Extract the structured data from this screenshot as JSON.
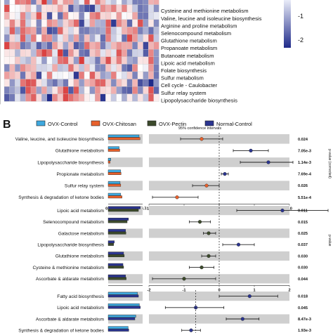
{
  "panel_label": "B",
  "heatmap": {
    "rows": [
      "Cysteine and methionine metabolism",
      "Valine, leucine and isoleucine biosynthesis",
      "Arginine and proline metabolism",
      "Selenocompound metabolism",
      "Glutathione metabolism",
      "Propanoate metabolism",
      "Butanoate metabolism",
      "Lipoic acid metabolism",
      "Folate biosynthesis",
      "Sulfur metabolism",
      "Cell cycle - Caulobacter",
      "Sulfur relay system",
      "Lipopolysaccharide biosynthesis"
    ],
    "scale_ticks": [
      "-1",
      "-2"
    ],
    "colors": {
      "low": "#1f2a8a",
      "mid": "#ffffff",
      "high": "#d93a3a"
    }
  },
  "legend": [
    {
      "name": "OVX-Control",
      "color": "#3fa9df"
    },
    {
      "name": "OVX-Chitosan",
      "color": "#e8612c"
    },
    {
      "name": "OVX-Pectin",
      "color": "#3c4a2c"
    },
    {
      "name": "Normal-Control",
      "color": "#2b3590"
    }
  ],
  "ci_label": "95% confidence intervals",
  "pvalue_axis_label": "p-value (corrected)",
  "pvalue_axis_label2": "p-value",
  "chart_data": [
    {
      "type": "bar",
      "x_ticks": [
        "0.0",
        "10.7"
      ],
      "diff_ticks": [
        "-1.0",
        "-0.5",
        "0.0",
        "0.5",
        "1.0"
      ],
      "diff_lim": [
        -1.0,
        1.0
      ],
      "bar_lim": [
        0,
        10.7
      ],
      "series_colors": [
        "#3fa9df",
        "#e8612c"
      ],
      "rows": [
        {
          "label": "Valine, leucine, and isoleucine biosynthesis",
          "bars": [
            9.6,
            9.9
          ],
          "diff": -0.25,
          "lo": -0.55,
          "hi": 0.05,
          "p": "0.024",
          "color": "#e8612c"
        },
        {
          "label": "Glutathione metabolism",
          "bars": [
            3.4,
            3.6
          ],
          "diff": 0.45,
          "lo": 0.2,
          "hi": 0.7,
          "p": "7.05e-3",
          "color": "#2b3590"
        },
        {
          "label": "Lipopolysaccharide biosynthesis",
          "bars": [
            0.8,
            0.6
          ],
          "diff": 0.7,
          "lo": 0.3,
          "hi": 1.05,
          "p": "1.14e-3",
          "color": "#2b3590"
        },
        {
          "label": "Propionate metabolism",
          "bars": [
            3.9,
            4.0
          ],
          "diff": 0.08,
          "lo": 0.03,
          "hi": 0.13,
          "p": "7.69e-4",
          "color": "#2b3590"
        },
        {
          "label": "Sulfur relay system",
          "bars": [
            3.7,
            3.9
          ],
          "diff": -0.18,
          "lo": -0.38,
          "hi": 0.0,
          "p": "0.026",
          "color": "#e8612c"
        },
        {
          "label": "Synthesis & degradation of ketone bodies",
          "bars": [
            3.9,
            4.3
          ],
          "diff": -0.6,
          "lo": -0.95,
          "hi": -0.3,
          "p": "5.51e-4",
          "color": "#e8612c"
        }
      ]
    },
    {
      "type": "bar",
      "x_ticks": [],
      "diff_ticks": [
        "-2",
        "-1",
        "0",
        "1",
        "2"
      ],
      "diff_lim": [
        -2,
        2
      ],
      "bar_lim": [
        0,
        10.7
      ],
      "series_colors": [
        "#2b3590",
        "#3c4a2c"
      ],
      "rows": [
        {
          "label": "Lipoic acid metabolism",
          "bars": [
            10.0,
            9.4
          ],
          "diff": 1.8,
          "lo": 0.5,
          "hi": 3.1,
          "p": "0.011",
          "color": "#2b3590"
        },
        {
          "label": "Selenocompound metabolism",
          "bars": [
            6.3,
            5.9
          ],
          "diff": -0.55,
          "lo": -0.85,
          "hi": -0.25,
          "p": "0.015",
          "color": "#3c4a2c"
        },
        {
          "label": "Galactose metabolism",
          "bars": [
            5.4,
            5.5
          ],
          "diff": -0.3,
          "lo": -0.45,
          "hi": -0.1,
          "p": "0.025",
          "color": "#3c4a2c"
        },
        {
          "label": "Lipopolysaccharide biosynthesis",
          "bars": [
            1.9,
            1.7
          ],
          "diff": 0.55,
          "lo": 0.1,
          "hi": 1.0,
          "p": "0.037",
          "color": "#2b3590"
        },
        {
          "label": "Glutathione metabolism",
          "bars": [
            4.8,
            5.0
          ],
          "diff": -0.3,
          "lo": -0.5,
          "hi": -0.1,
          "p": "0.030",
          "color": "#3c4a2c"
        },
        {
          "label": "Cysteine & methionine metabolism",
          "bars": [
            4.6,
            4.8
          ],
          "diff": -0.5,
          "lo": -0.85,
          "hi": -0.15,
          "p": "0.030",
          "color": "#3c4a2c"
        },
        {
          "label": "Ascorbate & aldarate metabolism",
          "bars": [
            5.4,
            5.6
          ],
          "diff": -1.0,
          "lo": -1.9,
          "hi": -0.1,
          "p": "0.044",
          "color": "#3c4a2c"
        }
      ]
    },
    {
      "type": "bar",
      "x_ticks": [],
      "diff_ticks": [],
      "diff_lim": [
        -2,
        4
      ],
      "bar_lim": [
        0,
        10.7
      ],
      "series_colors": [
        "#3fa9df",
        "#2b3590"
      ],
      "rows": [
        {
          "label": "Fatty acid biosynthesis",
          "bars": [
            9.1,
            9.4
          ],
          "diff": 2.3,
          "lo": 1.0,
          "hi": 3.5,
          "p": "0.018",
          "color": "#2b3590"
        },
        {
          "label": "Lipoic acid metabolism",
          "bars": [
            9.7,
            10.0
          ],
          "diff": 0.0,
          "lo": -1.3,
          "hi": 1.2,
          "p": "0.045",
          "color": "#2b3590"
        },
        {
          "label": "Ascorbate & aldarate metabolism",
          "bars": [
            8.6,
            8.3
          ],
          "diff": 2.0,
          "lo": 1.3,
          "hi": 2.7,
          "p": "8.47e-3",
          "color": "#2b3590"
        },
        {
          "label": "Synthesis & degradation of ketone bodies",
          "bars": [
            6.2,
            6.4
          ],
          "diff": -0.2,
          "lo": -0.6,
          "hi": 0.2,
          "p": "1.93e-3",
          "color": "#2b3590"
        }
      ]
    }
  ]
}
